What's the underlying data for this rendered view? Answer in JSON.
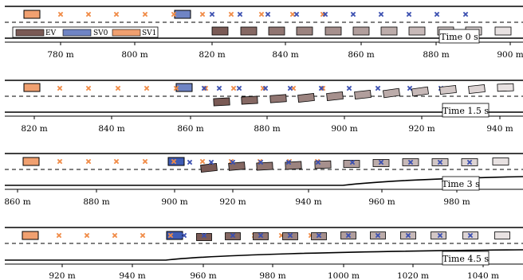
{
  "colors": {
    "ev": "#7a5a55",
    "ev_fade": "#e8e2e2",
    "sv0": "#6f84c4",
    "sv1": "#f0a070",
    "cross_orange": "#f08a45",
    "cross_blue": "#3b4fb0",
    "road": "#000000"
  },
  "legend": {
    "ev_label": "EV",
    "sv0_label": "SV0",
    "sv1_label": "SV1"
  },
  "panels": [
    {
      "time_label": "Time 0 s",
      "x_ticks": [
        "780 m",
        "800 m",
        "820 m",
        "840 m",
        "860 m",
        "880 m",
        "900 m"
      ]
    },
    {
      "time_label": "Time 1.5 s",
      "x_ticks": [
        "820 m",
        "840 m",
        "860 m",
        "880 m",
        "900 m",
        "920 m",
        "940 m"
      ]
    },
    {
      "time_label": "Time 3 s",
      "x_ticks": [
        "860 m",
        "880 m",
        "900 m",
        "920 m",
        "940 m",
        "960 m",
        "980 m"
      ]
    },
    {
      "time_label": "Time 4.5 s",
      "x_ticks": [
        "920 m",
        "940 m",
        "960 m",
        "980 m",
        "1000 m",
        "1020 m",
        "1040 m"
      ]
    }
  ]
}
